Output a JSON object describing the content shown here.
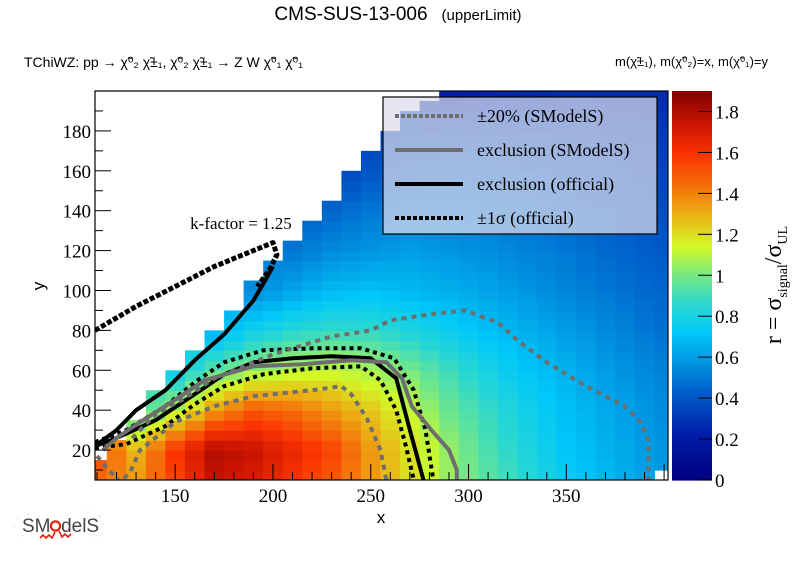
{
  "header": {
    "title": "CMS-SUS-13-006",
    "subtitle": "(upperLimit)",
    "process_prefix": "TChiWZ: pp",
    "process_decay": "→ χ̃⁰₂ χ̃±₁, χ̃⁰₂ χ̃±₁ → Z W χ̃⁰₁ χ̃⁰₁",
    "mass_info": "m(χ̃±₁), m(χ̃⁰₂)=x, m(χ̃⁰₁)=y"
  },
  "logo": {
    "text": "SModelS",
    "accent": "#e8200c"
  },
  "chart_data": {
    "type": "heatmap",
    "title": "CMS-SUS-13-006 (upperLimit)",
    "xlabel": "x",
    "ylabel": "y",
    "zlabel": "r = σsignal/σUL",
    "xlim": [
      109,
      402
    ],
    "ylim": [
      5,
      200
    ],
    "zlim": [
      0,
      1.9
    ],
    "xticks": [
      150,
      200,
      250,
      300,
      350
    ],
    "yticks": [
      20,
      40,
      60,
      80,
      100,
      120,
      140,
      160,
      180
    ],
    "zticks": [
      0,
      0.2,
      0.4,
      0.6,
      0.8,
      1,
      1.2,
      1.4,
      1.6,
      1.8
    ],
    "grid": false,
    "annotation": "k-factor = 1.25",
    "legend": {
      "placement": "top-right",
      "entries": [
        {
          "label": "±20% (SModelS)",
          "style": "dotted",
          "color": "#6e6e6e"
        },
        {
          "label": "exclusion (SModelS)",
          "style": "solid",
          "color": "#6e6e6e"
        },
        {
          "label": "exclusion (official)",
          "style": "solid",
          "color": "#000000"
        },
        {
          "label": "±1σ (official)",
          "style": "dotted",
          "color": "#000000"
        }
      ]
    },
    "heatmap_grid": {
      "x": [
        110,
        130,
        150,
        170,
        190,
        210,
        230,
        250,
        270,
        290,
        310,
        330,
        350,
        370,
        390,
        400
      ],
      "y": [
        5,
        20,
        40,
        60,
        80,
        100,
        120,
        140,
        160,
        180,
        200
      ],
      "z": [
        [
          1.45,
          1.35,
          1.55,
          1.75,
          1.7,
          1.6,
          1.5,
          1.35,
          1.2,
          1.05,
          0.95,
          0.85,
          0.75,
          0.68,
          0.62,
          0.6
        ],
        [
          1.55,
          1.3,
          1.6,
          1.8,
          1.75,
          1.65,
          1.55,
          1.35,
          1.2,
          1.05,
          0.92,
          0.82,
          0.72,
          0.66,
          0.6,
          0.58
        ],
        [
          null,
          0.85,
          1.1,
          1.35,
          1.5,
          1.45,
          1.35,
          1.25,
          1.12,
          0.98,
          0.88,
          0.78,
          0.7,
          0.64,
          0.58,
          0.56
        ],
        [
          null,
          null,
          0.75,
          0.95,
          1.05,
          1.1,
          1.12,
          1.08,
          1.0,
          0.9,
          0.8,
          0.72,
          0.66,
          0.6,
          0.55,
          0.53
        ],
        [
          null,
          null,
          null,
          0.65,
          0.78,
          0.85,
          0.88,
          0.87,
          0.82,
          0.76,
          0.7,
          0.65,
          0.6,
          0.55,
          0.5,
          0.48
        ],
        [
          null,
          null,
          null,
          null,
          0.55,
          0.62,
          0.68,
          0.7,
          0.68,
          0.65,
          0.62,
          0.58,
          0.54,
          0.5,
          0.46,
          0.45
        ],
        [
          null,
          null,
          null,
          null,
          null,
          0.5,
          0.55,
          0.58,
          0.6,
          0.58,
          0.56,
          0.53,
          0.5,
          0.46,
          0.43,
          0.42
        ],
        [
          null,
          null,
          null,
          null,
          null,
          0.4,
          0.45,
          0.5,
          0.52,
          0.52,
          0.5,
          0.48,
          0.45,
          0.42,
          0.4,
          0.38
        ],
        [
          null,
          null,
          null,
          null,
          null,
          null,
          0.34,
          0.4,
          0.44,
          0.46,
          0.45,
          0.43,
          0.41,
          0.39,
          0.36,
          0.35
        ],
        [
          null,
          null,
          null,
          null,
          null,
          null,
          null,
          0.33,
          0.36,
          0.38,
          0.38,
          0.37,
          0.36,
          0.34,
          0.32,
          0.32
        ],
        [
          null,
          null,
          null,
          null,
          null,
          null,
          null,
          null,
          null,
          0.2,
          0.22,
          0.24,
          0.26,
          0.26,
          0.26,
          0.26
        ]
      ]
    },
    "contours": {
      "exclusion_official": [
        [
          109,
          22
        ],
        [
          120,
          26
        ],
        [
          140,
          35
        ],
        [
          160,
          48
        ],
        [
          175,
          58
        ],
        [
          190,
          64
        ],
        [
          210,
          66
        ],
        [
          230,
          67
        ],
        [
          250,
          66
        ],
        [
          263,
          56
        ],
        [
          270,
          30
        ],
        [
          277,
          5
        ]
      ],
      "sigma_official_plus": [
        [
          109,
          24
        ],
        [
          125,
          30
        ],
        [
          145,
          42
        ],
        [
          160,
          54
        ],
        [
          175,
          64
        ],
        [
          195,
          70
        ],
        [
          220,
          71
        ],
        [
          245,
          71
        ],
        [
          262,
          66
        ],
        [
          272,
          50
        ],
        [
          278,
          30
        ],
        [
          282,
          5
        ]
      ],
      "sigma_official_minus": [
        [
          109,
          21
        ],
        [
          125,
          23
        ],
        [
          145,
          32
        ],
        [
          160,
          43
        ],
        [
          175,
          52
        ],
        [
          195,
          58
        ],
        [
          220,
          61
        ],
        [
          245,
          62
        ],
        [
          255,
          55
        ],
        [
          263,
          40
        ],
        [
          268,
          22
        ],
        [
          272,
          5
        ]
      ],
      "exclusion_smodels": [
        [
          113,
          20
        ],
        [
          120,
          26
        ],
        [
          132,
          34
        ],
        [
          145,
          42
        ],
        [
          165,
          55
        ],
        [
          190,
          62
        ],
        [
          215,
          63
        ],
        [
          240,
          65
        ],
        [
          258,
          64
        ],
        [
          266,
          56
        ],
        [
          271,
          42
        ],
        [
          281,
          30
        ],
        [
          290,
          20
        ],
        [
          294,
          10
        ],
        [
          294,
          5
        ]
      ],
      "plus20_smodels": [
        [
          110,
          17
        ],
        [
          117,
          9
        ],
        [
          122,
          4
        ],
        [
          127,
          9
        ],
        [
          132,
          20
        ],
        [
          150,
          34
        ],
        [
          170,
          42
        ],
        [
          190,
          47
        ],
        [
          220,
          50
        ],
        [
          235,
          52
        ],
        [
          240,
          48
        ],
        [
          248,
          36
        ],
        [
          255,
          20
        ],
        [
          258,
          5
        ]
      ],
      "minus20_smodels": [
        [
          128,
          26
        ],
        [
          140,
          38
        ],
        [
          155,
          46
        ],
        [
          170,
          56
        ],
        [
          200,
          68
        ],
        [
          230,
          77
        ],
        [
          250,
          80
        ],
        [
          260,
          85
        ],
        [
          280,
          88
        ],
        [
          298,
          90
        ],
        [
          315,
          84
        ],
        [
          325,
          75
        ],
        [
          340,
          64
        ],
        [
          360,
          52
        ],
        [
          380,
          42
        ],
        [
          388,
          34
        ],
        [
          392,
          25
        ],
        [
          392,
          5
        ]
      ],
      "kfactor_band_upper": [
        [
          109,
          80
        ],
        [
          130,
          92
        ],
        [
          150,
          102
        ],
        [
          170,
          112
        ],
        [
          185,
          118
        ],
        [
          195,
          122
        ],
        [
          200,
          124
        ],
        [
          202,
          118
        ],
        [
          198,
          110
        ],
        [
          192,
          102
        ]
      ],
      "kfactor_band_lower": [
        [
          109,
          22
        ],
        [
          120,
          30
        ],
        [
          130,
          40
        ],
        [
          145,
          50
        ],
        [
          160,
          65
        ],
        [
          175,
          78
        ],
        [
          190,
          95
        ],
        [
          196,
          105
        ],
        [
          200,
          112
        ]
      ]
    }
  }
}
